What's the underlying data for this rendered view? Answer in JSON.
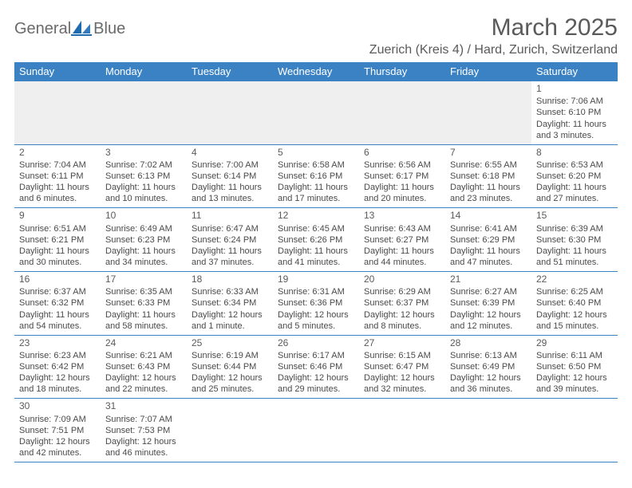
{
  "logo": {
    "text1": "General",
    "text2": "Blue"
  },
  "title": "March 2025",
  "location": "Zuerich (Kreis 4) / Hard, Zurich, Switzerland",
  "colors": {
    "header_bg": "#3b82c4",
    "header_text": "#ffffff",
    "border": "#3b82c4",
    "text": "#4a4a4a",
    "muted_bg": "#efefef"
  },
  "fonts": {
    "title_size": 30,
    "location_size": 16,
    "dayhead_size": 13,
    "cell_size": 11
  },
  "dayheads": [
    "Sunday",
    "Monday",
    "Tuesday",
    "Wednesday",
    "Thursday",
    "Friday",
    "Saturday"
  ],
  "weeks": [
    [
      null,
      null,
      null,
      null,
      null,
      null,
      {
        "n": "1",
        "sr": "Sunrise: 7:06 AM",
        "ss": "Sunset: 6:10 PM",
        "d1": "Daylight: 11 hours",
        "d2": "and 3 minutes."
      }
    ],
    [
      {
        "n": "2",
        "sr": "Sunrise: 7:04 AM",
        "ss": "Sunset: 6:11 PM",
        "d1": "Daylight: 11 hours",
        "d2": "and 6 minutes."
      },
      {
        "n": "3",
        "sr": "Sunrise: 7:02 AM",
        "ss": "Sunset: 6:13 PM",
        "d1": "Daylight: 11 hours",
        "d2": "and 10 minutes."
      },
      {
        "n": "4",
        "sr": "Sunrise: 7:00 AM",
        "ss": "Sunset: 6:14 PM",
        "d1": "Daylight: 11 hours",
        "d2": "and 13 minutes."
      },
      {
        "n": "5",
        "sr": "Sunrise: 6:58 AM",
        "ss": "Sunset: 6:16 PM",
        "d1": "Daylight: 11 hours",
        "d2": "and 17 minutes."
      },
      {
        "n": "6",
        "sr": "Sunrise: 6:56 AM",
        "ss": "Sunset: 6:17 PM",
        "d1": "Daylight: 11 hours",
        "d2": "and 20 minutes."
      },
      {
        "n": "7",
        "sr": "Sunrise: 6:55 AM",
        "ss": "Sunset: 6:18 PM",
        "d1": "Daylight: 11 hours",
        "d2": "and 23 minutes."
      },
      {
        "n": "8",
        "sr": "Sunrise: 6:53 AM",
        "ss": "Sunset: 6:20 PM",
        "d1": "Daylight: 11 hours",
        "d2": "and 27 minutes."
      }
    ],
    [
      {
        "n": "9",
        "sr": "Sunrise: 6:51 AM",
        "ss": "Sunset: 6:21 PM",
        "d1": "Daylight: 11 hours",
        "d2": "and 30 minutes."
      },
      {
        "n": "10",
        "sr": "Sunrise: 6:49 AM",
        "ss": "Sunset: 6:23 PM",
        "d1": "Daylight: 11 hours",
        "d2": "and 34 minutes."
      },
      {
        "n": "11",
        "sr": "Sunrise: 6:47 AM",
        "ss": "Sunset: 6:24 PM",
        "d1": "Daylight: 11 hours",
        "d2": "and 37 minutes."
      },
      {
        "n": "12",
        "sr": "Sunrise: 6:45 AM",
        "ss": "Sunset: 6:26 PM",
        "d1": "Daylight: 11 hours",
        "d2": "and 41 minutes."
      },
      {
        "n": "13",
        "sr": "Sunrise: 6:43 AM",
        "ss": "Sunset: 6:27 PM",
        "d1": "Daylight: 11 hours",
        "d2": "and 44 minutes."
      },
      {
        "n": "14",
        "sr": "Sunrise: 6:41 AM",
        "ss": "Sunset: 6:29 PM",
        "d1": "Daylight: 11 hours",
        "d2": "and 47 minutes."
      },
      {
        "n": "15",
        "sr": "Sunrise: 6:39 AM",
        "ss": "Sunset: 6:30 PM",
        "d1": "Daylight: 11 hours",
        "d2": "and 51 minutes."
      }
    ],
    [
      {
        "n": "16",
        "sr": "Sunrise: 6:37 AM",
        "ss": "Sunset: 6:32 PM",
        "d1": "Daylight: 11 hours",
        "d2": "and 54 minutes."
      },
      {
        "n": "17",
        "sr": "Sunrise: 6:35 AM",
        "ss": "Sunset: 6:33 PM",
        "d1": "Daylight: 11 hours",
        "d2": "and 58 minutes."
      },
      {
        "n": "18",
        "sr": "Sunrise: 6:33 AM",
        "ss": "Sunset: 6:34 PM",
        "d1": "Daylight: 12 hours",
        "d2": "and 1 minute."
      },
      {
        "n": "19",
        "sr": "Sunrise: 6:31 AM",
        "ss": "Sunset: 6:36 PM",
        "d1": "Daylight: 12 hours",
        "d2": "and 5 minutes."
      },
      {
        "n": "20",
        "sr": "Sunrise: 6:29 AM",
        "ss": "Sunset: 6:37 PM",
        "d1": "Daylight: 12 hours",
        "d2": "and 8 minutes."
      },
      {
        "n": "21",
        "sr": "Sunrise: 6:27 AM",
        "ss": "Sunset: 6:39 PM",
        "d1": "Daylight: 12 hours",
        "d2": "and 12 minutes."
      },
      {
        "n": "22",
        "sr": "Sunrise: 6:25 AM",
        "ss": "Sunset: 6:40 PM",
        "d1": "Daylight: 12 hours",
        "d2": "and 15 minutes."
      }
    ],
    [
      {
        "n": "23",
        "sr": "Sunrise: 6:23 AM",
        "ss": "Sunset: 6:42 PM",
        "d1": "Daylight: 12 hours",
        "d2": "and 18 minutes."
      },
      {
        "n": "24",
        "sr": "Sunrise: 6:21 AM",
        "ss": "Sunset: 6:43 PM",
        "d1": "Daylight: 12 hours",
        "d2": "and 22 minutes."
      },
      {
        "n": "25",
        "sr": "Sunrise: 6:19 AM",
        "ss": "Sunset: 6:44 PM",
        "d1": "Daylight: 12 hours",
        "d2": "and 25 minutes."
      },
      {
        "n": "26",
        "sr": "Sunrise: 6:17 AM",
        "ss": "Sunset: 6:46 PM",
        "d1": "Daylight: 12 hours",
        "d2": "and 29 minutes."
      },
      {
        "n": "27",
        "sr": "Sunrise: 6:15 AM",
        "ss": "Sunset: 6:47 PM",
        "d1": "Daylight: 12 hours",
        "d2": "and 32 minutes."
      },
      {
        "n": "28",
        "sr": "Sunrise: 6:13 AM",
        "ss": "Sunset: 6:49 PM",
        "d1": "Daylight: 12 hours",
        "d2": "and 36 minutes."
      },
      {
        "n": "29",
        "sr": "Sunrise: 6:11 AM",
        "ss": "Sunset: 6:50 PM",
        "d1": "Daylight: 12 hours",
        "d2": "and 39 minutes."
      }
    ],
    [
      {
        "n": "30",
        "sr": "Sunrise: 7:09 AM",
        "ss": "Sunset: 7:51 PM",
        "d1": "Daylight: 12 hours",
        "d2": "and 42 minutes."
      },
      {
        "n": "31",
        "sr": "Sunrise: 7:07 AM",
        "ss": "Sunset: 7:53 PM",
        "d1": "Daylight: 12 hours",
        "d2": "and 46 minutes."
      },
      null,
      null,
      null,
      null,
      null
    ]
  ]
}
